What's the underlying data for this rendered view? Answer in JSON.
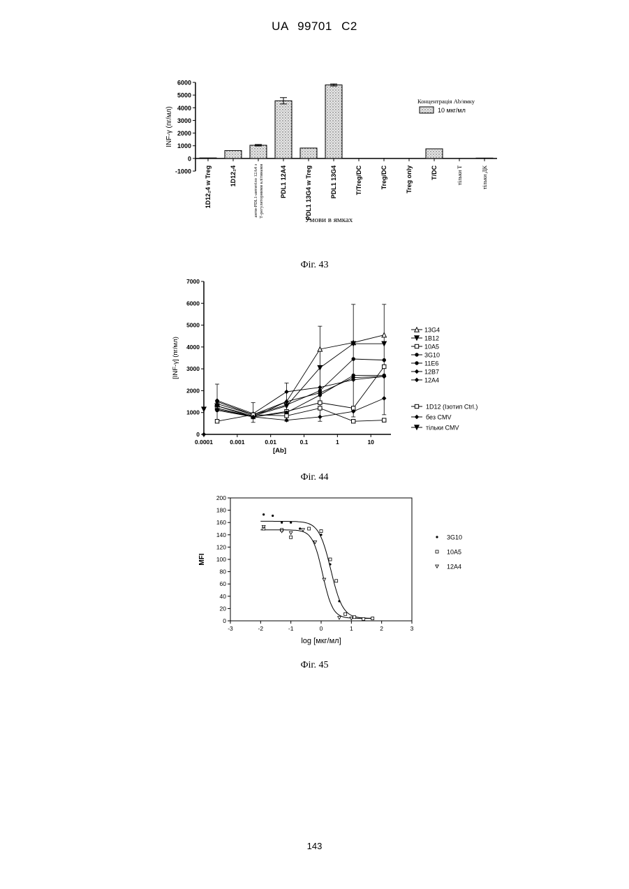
{
  "header": {
    "patent_number": "UA   99701   C2"
  },
  "page_number": "143",
  "figures": {
    "fig43": {
      "caption": "Фіг. 43"
    },
    "fig44": {
      "caption": "Фіг. 44"
    },
    "fig45": {
      "caption": "Фіг. 45"
    }
  },
  "chart_data": [
    {
      "type": "bar",
      "title": "",
      "ylabel": "INF-γ (пг/мл)",
      "xlabel": "Умови в ямках",
      "ylim": [
        -1000,
        6000
      ],
      "yticks": [
        -1000,
        0,
        1000,
        2000,
        3000,
        4000,
        5000,
        6000
      ],
      "legend_title": "Концентрація Ab/ямку",
      "categories": [
        "1D12₂4 w Treg",
        "1D12₂4",
        "анти-PDL1-антитіло 12А4 з Т-регуляторними клітинами",
        "PDL1 12A4",
        "PDL1 13G4 w Treg",
        "PDL1 13G4",
        "T/Treg/DC",
        "Treg/DC",
        "Treg only",
        "T/DC",
        "тільки Т",
        "тільки ДК"
      ],
      "series": [
        {
          "name": "10 мкг/мл",
          "values": [
            40,
            620,
            1040,
            4550,
            820,
            5800,
            0,
            0,
            0,
            760,
            0,
            30
          ],
          "errors": [
            0,
            0,
            60,
            250,
            0,
            80,
            0,
            0,
            0,
            0,
            0,
            0
          ]
        }
      ],
      "legend": "top-right"
    },
    {
      "type": "line",
      "title": "",
      "ylabel": "[INF-γ] (пг/мл)",
      "xlabel": "[Ab]",
      "xscale": "log",
      "xlim": [
        0.0001,
        40
      ],
      "ylim": [
        0,
        7000
      ],
      "yticks": [
        0,
        1000,
        2000,
        3000,
        4000,
        5000,
        6000,
        7000
      ],
      "xticks": [
        "0.0001",
        "0.001",
        "0.01",
        "0.1",
        "1",
        "10"
      ],
      "x": [
        0.00025,
        0.003,
        0.03,
        0.3,
        3,
        25
      ],
      "series": [
        {
          "name": "13G4",
          "values": [
            1400,
            900,
            1500,
            3900,
            4200,
            4550
          ]
        },
        {
          "name": "1B12",
          "values": [
            1300,
            850,
            1300,
            3050,
            4150,
            4150
          ]
        },
        {
          "name": "10A5",
          "values": [
            1200,
            800,
            1050,
            1450,
            1200,
            3100
          ]
        },
        {
          "name": "3G10",
          "values": [
            1500,
            900,
            1350,
            2000,
            3450,
            3400
          ]
        },
        {
          "name": "11E6",
          "values": [
            1100,
            800,
            1000,
            1800,
            2700,
            2700
          ]
        },
        {
          "name": "12B7",
          "values": [
            1550,
            950,
            1950,
            2150,
            2500,
            2650
          ]
        },
        {
          "name": "12A4",
          "values": [
            1300,
            800,
            1500,
            1900,
            2600,
            2650
          ]
        },
        {
          "name": "1D12 (Ізотип Ctrl.)",
          "values": [
            600,
            900,
            850,
            1200,
            600,
            650
          ]
        },
        {
          "name": "без CMV",
          "values": [
            1150,
            800,
            650,
            800,
            1050,
            1650
          ]
        }
      ],
      "single_points": [
        {
          "series": "без CMV",
          "x": 0.0001,
          "y": 0
        },
        {
          "series": "тільки CMV",
          "x": 0.0001,
          "y": 1150
        }
      ],
      "legend": "right"
    },
    {
      "type": "scatter",
      "title": "",
      "ylabel": "MFI",
      "xlabel": "log [мкг/мл]",
      "xlim": [
        -3,
        3
      ],
      "ylim": [
        0,
        200
      ],
      "xticks": [
        -3,
        -2,
        -1,
        0,
        1,
        2,
        3
      ],
      "yticks": [
        0,
        20,
        40,
        60,
        80,
        100,
        120,
        140,
        160,
        180,
        200
      ],
      "series": [
        {
          "name": "3G10",
          "x": [
            -1.9,
            -1.6,
            -1.3,
            -1.0,
            -0.7,
            0.0,
            0.3,
            0.6,
            1.0,
            1.4,
            1.7
          ],
          "y": [
            173,
            171,
            160,
            160,
            150,
            140,
            92,
            32,
            5,
            3,
            5
          ]
        },
        {
          "name": "10A5",
          "x": [
            -1.9,
            -1.3,
            -1.0,
            -0.4,
            0.0,
            0.3,
            0.5,
            0.8,
            1.1,
            1.4,
            1.7
          ],
          "y": [
            150,
            148,
            136,
            150,
            146,
            100,
            65,
            11,
            6,
            3,
            4
          ]
        },
        {
          "name": "12A4",
          "x": [
            -1.9,
            -1.3,
            -1.0,
            -0.6,
            -0.2,
            0.1,
            0.6,
            1.0
          ],
          "y": [
            153,
            146,
            143,
            148,
            128,
            67,
            5,
            4
          ]
        }
      ],
      "fits": [
        {
          "series": "3G10",
          "top": 162,
          "bottom": 4,
          "ec50_log": 0.32,
          "hill": 2.2
        },
        {
          "series": "12A4",
          "top": 148,
          "bottom": 4,
          "ec50_log": 0.05,
          "hill": 2.6
        }
      ],
      "legend": "right"
    }
  ]
}
